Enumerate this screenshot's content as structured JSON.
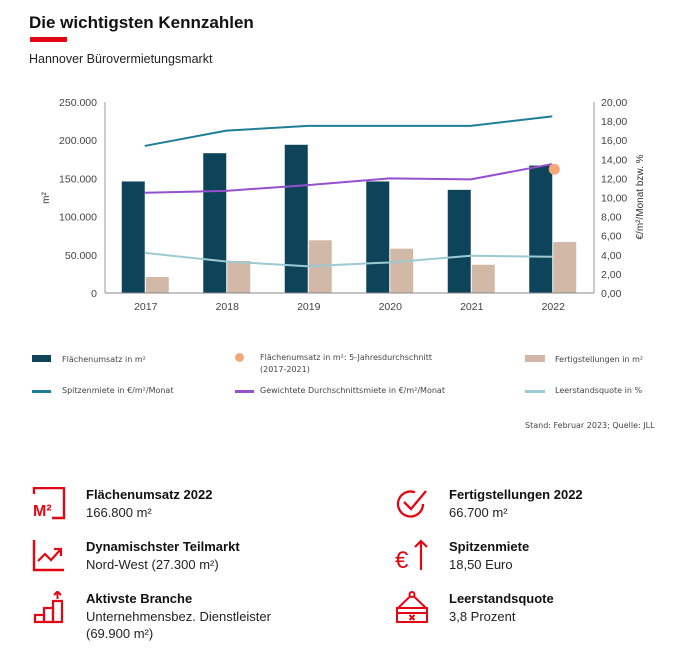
{
  "header": {
    "title": "Die wichtigsten Kennzahlen",
    "subtitle": "Hannover Bürovermietungsmarkt",
    "accent_color": "#e30613"
  },
  "chart_data": {
    "type": "bar",
    "categories": [
      "2017",
      "2018",
      "2019",
      "2020",
      "2021",
      "2022"
    ],
    "ylabel": "m²",
    "y2label": "€/m²/Monat bzw. %",
    "ylim": [
      0,
      250000
    ],
    "y2lim": [
      0,
      20
    ],
    "y_ticks": [
      "0",
      "50.000",
      "100.000",
      "150.000",
      "200.000",
      "250.000"
    ],
    "y2_ticks": [
      "0,00",
      "2,00",
      "4,00",
      "6,00",
      "8,00",
      "10,00",
      "12,00",
      "14,00",
      "16,00",
      "18,00",
      "20,00"
    ],
    "grid": false,
    "series": [
      {
        "name": "Flächenumsatz in m²",
        "kind": "bar",
        "axis": "left",
        "color": "#0d4459",
        "values": [
          146000,
          183000,
          194000,
          146000,
          135000,
          166800
        ]
      },
      {
        "name": "Fertigstellungen in m²",
        "kind": "bar",
        "axis": "left",
        "color": "#d2b8a6",
        "values": [
          21000,
          42000,
          69000,
          58000,
          37000,
          66700
        ]
      },
      {
        "name": "Spitzenmiete in €/m²/Monat",
        "kind": "line",
        "axis": "right",
        "color": "#1f7e97",
        "values": [
          15.4,
          17.0,
          17.5,
          17.5,
          17.5,
          18.5
        ]
      },
      {
        "name": "Gewichtete Durchschnittsmiete in €/m²/Monat",
        "kind": "line",
        "axis": "right",
        "color": "#9550d0",
        "values": [
          10.5,
          10.7,
          11.3,
          12.0,
          11.9,
          13.5
        ]
      },
      {
        "name": "Leerstandsquote in %",
        "kind": "line",
        "axis": "right",
        "color": "#9ccad3",
        "values": [
          4.2,
          3.3,
          2.8,
          3.2,
          3.9,
          3.8
        ]
      },
      {
        "name": "Flächenumsatz in m²: 5-Jahresdurchschnitt (2017-2021)",
        "kind": "point",
        "axis": "left",
        "color": "#f5a77a",
        "category": "2022",
        "value": 162000
      }
    ],
    "legend": [
      {
        "label": "Flächenumsatz in m²",
        "marker": "bar",
        "color": "#0d4459"
      },
      {
        "label": "Flächenumsatz in m²: 5-Jahresdurchschnitt",
        "label2": "(2017-2021)",
        "marker": "dot",
        "color": "#f5a77a"
      },
      {
        "label": "Fertigstellungen in m²",
        "marker": "bar",
        "color": "#d2b8a6"
      },
      {
        "label": "Spitzenmiete in €/m²/Monat",
        "marker": "line",
        "color": "#1f7e97"
      },
      {
        "label": "Gewichtete Durchschnittsmiete in €/m²/Monat",
        "marker": "line",
        "color": "#9550d0"
      },
      {
        "label": "Leerstandsquote in %",
        "marker": "line",
        "color": "#9ccad3"
      }
    ],
    "legend_position": "bottom"
  },
  "source": "Stand: Februar 2023; Quelle: JLL",
  "kpis": [
    {
      "icon": "square-meter-icon",
      "title": "Flächenumsatz 2022",
      "value": "166.800 m²"
    },
    {
      "icon": "trend-chart-icon",
      "title": "Dynamischster Teilmarkt",
      "value": "Nord-West (27.300 m²)"
    },
    {
      "icon": "rising-steps-icon",
      "title": "Aktivste Branche",
      "value": "Unternehmensbez. Dienstleister",
      "value2": "(69.900 m²)"
    },
    {
      "icon": "check-circle-icon",
      "title": "Fertigstellungen 2022",
      "value": "66.700 m²"
    },
    {
      "icon": "euro-up-icon",
      "title": "Spitzenmiete",
      "value": "18,50 Euro"
    },
    {
      "icon": "vacancy-sign-icon",
      "title": "Leerstandsquote",
      "value": "3,8 Prozent"
    }
  ]
}
